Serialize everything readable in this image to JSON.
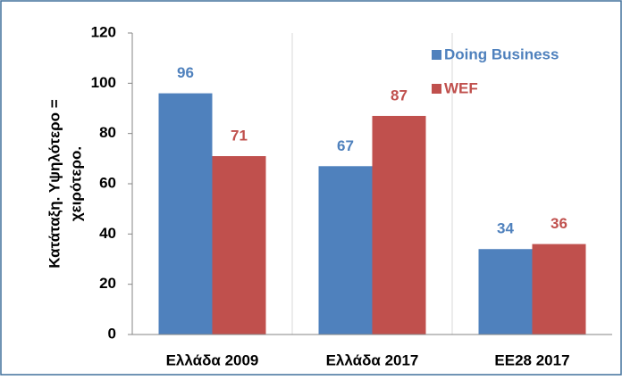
{
  "chart_data": {
    "type": "bar",
    "ylabel": [
      "Κατάταξη. Υψηλότερο =",
      "χειρότερο."
    ],
    "categories": [
      "Ελλάδα 2009",
      "Ελλάδα 2017",
      "ΕΕ28 2017"
    ],
    "series": [
      {
        "name": "Doing Business",
        "color": "#4f81bd",
        "values": [
          96,
          67,
          34
        ]
      },
      {
        "name": "WEF",
        "color": "#c0504d",
        "values": [
          71,
          87,
          36
        ]
      }
    ],
    "ylim": [
      0,
      120
    ],
    "yticks": [
      0,
      20,
      40,
      60,
      80,
      100,
      120
    ],
    "legend": "top-right",
    "category_grid": true
  }
}
